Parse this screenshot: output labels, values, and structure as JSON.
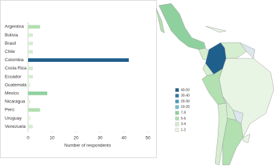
{
  "chart_data": {
    "type": "bar",
    "orientation": "horizontal",
    "categories": [
      "Argentina",
      "Bolivia",
      "Brasil",
      "Chile",
      "Colombia",
      "Costa Rica",
      "Ecuador",
      "Guatemala",
      "Mexico",
      "Nicaragua",
      "Perú",
      "Uruguay",
      "Venezuela"
    ],
    "values": [
      5,
      2,
      2,
      2,
      42,
      2,
      2,
      1,
      8,
      1,
      5,
      1,
      2
    ],
    "colors": [
      "#b2e0b0",
      "#d4eecf",
      "#d4eecf",
      "#d4eecf",
      "#1f5f8b",
      "#d4eecf",
      "#d4eecf",
      "#e3f3de",
      "#8fd19e",
      "#e3f3de",
      "#b2e0b0",
      "#e3f3de",
      "#d4eecf"
    ],
    "xlim": [
      0,
      50
    ],
    "xticks": [
      0,
      10,
      20,
      30,
      40,
      50
    ],
    "xlabel": "Number of respondents"
  },
  "map_legend": {
    "labels": [
      "40-50",
      "30-40",
      "20-30",
      "10-20",
      "7-9",
      "5-6",
      "3-4",
      "1-2"
    ],
    "colors": [
      "#1f5f8b",
      "#2e7aa8",
      "#4b9fc0",
      "#6cc0cf",
      "#8fd19e",
      "#b2e0b0",
      "#d4eecf",
      "#e9f5e4"
    ]
  }
}
